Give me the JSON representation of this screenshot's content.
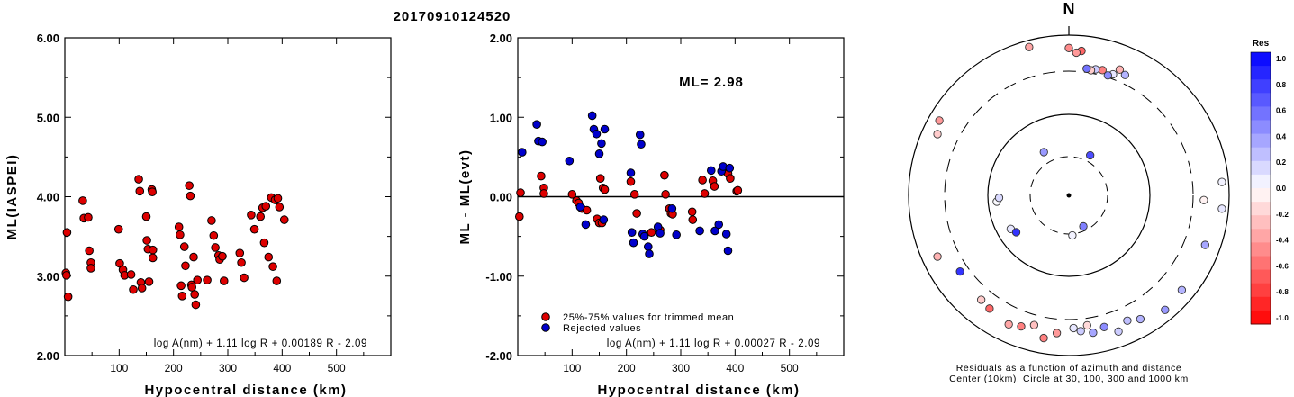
{
  "title": "20170910124520",
  "chart_data": [
    {
      "type": "scatter",
      "xlabel": "Hypocentral distance (km)",
      "ylabel": "ML(IASPEI)",
      "xlim": [
        0,
        600
      ],
      "ylim": [
        2.0,
        6.0
      ],
      "xticks": [
        "100",
        "200",
        "300",
        "400",
        "500"
      ],
      "yticks": [
        "2.00",
        "3.00",
        "4.00",
        "5.00",
        "6.00"
      ],
      "annotation": "log A(nm) + 1.11 log R + 0.00189 R - 2.09",
      "series": [
        {
          "color": "#dd0000",
          "points": [
            [
              2,
              3.04
            ],
            [
              3,
              3.01
            ],
            [
              4,
              3.55
            ],
            [
              6,
              2.74
            ],
            [
              33,
              3.95
            ],
            [
              35,
              3.73
            ],
            [
              43,
              3.74
            ],
            [
              45,
              3.32
            ],
            [
              48,
              3.17
            ],
            [
              48,
              3.1
            ],
            [
              99,
              3.59
            ],
            [
              101,
              3.16
            ],
            [
              107,
              3.08
            ],
            [
              110,
              3.01
            ],
            [
              122,
              3.02
            ],
            [
              126,
              2.83
            ],
            [
              136,
              4.22
            ],
            [
              138,
              4.07
            ],
            [
              140,
              2.92
            ],
            [
              142,
              2.85
            ],
            [
              150,
              3.75
            ],
            [
              151,
              3.45
            ],
            [
              153,
              3.34
            ],
            [
              155,
              2.93
            ],
            [
              160,
              4.09
            ],
            [
              161,
              4.06
            ],
            [
              162,
              3.33
            ],
            [
              162,
              3.23
            ],
            [
              210,
              3.62
            ],
            [
              212,
              3.52
            ],
            [
              214,
              2.88
            ],
            [
              216,
              2.75
            ],
            [
              220,
              3.37
            ],
            [
              222,
              3.13
            ],
            [
              229,
              4.14
            ],
            [
              231,
              4.01
            ],
            [
              233,
              2.89
            ],
            [
              234,
              2.86
            ],
            [
              237,
              3.24
            ],
            [
              239,
              2.77
            ],
            [
              241,
              2.64
            ],
            [
              244,
              2.95
            ],
            [
              262,
              2.95
            ],
            [
              270,
              3.7
            ],
            [
              274,
              3.51
            ],
            [
              277,
              3.36
            ],
            [
              283,
              3.26
            ],
            [
              285,
              3.21
            ],
            [
              290,
              3.25
            ],
            [
              293,
              2.94
            ],
            [
              322,
              3.29
            ],
            [
              325,
              3.17
            ],
            [
              330,
              2.98
            ],
            [
              343,
              3.77
            ],
            [
              349,
              3.59
            ],
            [
              360,
              3.75
            ],
            [
              364,
              3.86
            ],
            [
              367,
              3.42
            ],
            [
              370,
              3.88
            ],
            [
              375,
              3.24
            ],
            [
              380,
              3.99
            ],
            [
              383,
              3.12
            ],
            [
              387,
              3.96
            ],
            [
              390,
              2.94
            ],
            [
              392,
              3.98
            ],
            [
              395,
              3.87
            ],
            [
              404,
              3.71
            ]
          ]
        }
      ]
    },
    {
      "type": "scatter",
      "xlabel": "Hypocentral distance (km)",
      "ylabel": "ML - ML(evt)",
      "xlim": [
        0,
        600
      ],
      "ylim": [
        -2.0,
        2.0
      ],
      "xticks": [
        "100",
        "200",
        "300",
        "400",
        "500"
      ],
      "yticks": [
        "-2.00",
        "-1.00",
        "0.00",
        "1.00",
        "2.00"
      ],
      "ml_label": "ML= 2.98",
      "annotation": "log A(nm) + 1.11 log R + 0.00027 R - 2.09",
      "legend": [
        {
          "label": "25%-75% values for trimmed mean",
          "color": "#dd0000"
        },
        {
          "label": "Rejected values",
          "color": "#0000cc"
        }
      ],
      "series": [
        {
          "name": "25%-75% values for trimmed mean",
          "color": "#dd0000",
          "points": [
            [
              3,
              -0.25
            ],
            [
              5,
              0.05
            ],
            [
              43,
              0.26
            ],
            [
              48,
              0.11
            ],
            [
              48,
              0.04
            ],
            [
              100,
              0.03
            ],
            [
              108,
              -0.05
            ],
            [
              112,
              -0.08
            ],
            [
              118,
              -0.15
            ],
            [
              127,
              -0.17
            ],
            [
              146,
              -0.28
            ],
            [
              150,
              -0.33
            ],
            [
              152,
              0.23
            ],
            [
              155,
              -0.33
            ],
            [
              157,
              0.11
            ],
            [
              160,
              0.09
            ],
            [
              208,
              0.19
            ],
            [
              215,
              0.03
            ],
            [
              219,
              -0.21
            ],
            [
              246,
              -0.45
            ],
            [
              262,
              -0.42
            ],
            [
              270,
              0.27
            ],
            [
              272,
              0.03
            ],
            [
              279,
              -0.15
            ],
            [
              282,
              -0.21
            ],
            [
              285,
              -0.22
            ],
            [
              321,
              -0.19
            ],
            [
              322,
              -0.29
            ],
            [
              340,
              0.21
            ],
            [
              344,
              0.04
            ],
            [
              359,
              0.2
            ],
            [
              362,
              0.13
            ],
            [
              387,
              0.29
            ],
            [
              391,
              0.23
            ],
            [
              403,
              0.07
            ],
            [
              405,
              0.08
            ]
          ]
        },
        {
          "name": "Rejected values",
          "color": "#0000cc",
          "points": [
            [
              8,
              0.56
            ],
            [
              35,
              0.91
            ],
            [
              38,
              0.7
            ],
            [
              45,
              0.69
            ],
            [
              95,
              0.45
            ],
            [
              115,
              -0.13
            ],
            [
              125,
              -0.35
            ],
            [
              137,
              1.02
            ],
            [
              140,
              0.85
            ],
            [
              145,
              0.79
            ],
            [
              150,
              0.54
            ],
            [
              154,
              0.67
            ],
            [
              160,
              0.85
            ],
            [
              158,
              -0.29
            ],
            [
              208,
              0.3
            ],
            [
              210,
              -0.45
            ],
            [
              213,
              -0.58
            ],
            [
              225,
              0.78
            ],
            [
              227,
              0.66
            ],
            [
              230,
              -0.47
            ],
            [
              233,
              -0.5
            ],
            [
              240,
              -0.63
            ],
            [
              242,
              -0.72
            ],
            [
              258,
              -0.38
            ],
            [
              262,
              -0.46
            ],
            [
              284,
              -0.15
            ],
            [
              292,
              -0.48
            ],
            [
              335,
              -0.43
            ],
            [
              356,
              0.33
            ],
            [
              363,
              -0.43
            ],
            [
              370,
              -0.35
            ],
            [
              375,
              0.32
            ],
            [
              378,
              0.38
            ],
            [
              384,
              -0.47
            ],
            [
              387,
              -0.68
            ],
            [
              390,
              0.36
            ]
          ]
        }
      ]
    },
    {
      "type": "polar-scatter",
      "north_label": "N",
      "caption_line1": "Residuals as a function of azimuth and distance",
      "caption_line2": "Center (10km), Circle at 30, 100, 300 and 1000 km",
      "colorbar_title": "Res",
      "colorbar_ticks": [
        "1.0",
        "0.8",
        "0.6",
        "0.4",
        "0.2",
        "0.0",
        "-0.2",
        "-0.4",
        "-0.6",
        "-0.8",
        "-1.0"
      ],
      "points": [
        {
          "az": 155,
          "d": 30,
          "res": 0.5
        },
        {
          "az": 175,
          "d": 35,
          "res": 0.05
        },
        {
          "az": 240,
          "d": 70,
          "res": 0.1
        },
        {
          "az": 235,
          "d": 65,
          "res": 0.8
        },
        {
          "az": 330,
          "d": 45,
          "res": 0.4
        },
        {
          "az": 28,
          "d": 40,
          "res": 0.7
        },
        {
          "az": 25,
          "d": 400,
          "res": 0.3
        },
        {
          "az": 22,
          "d": 440,
          "res": -0.3
        },
        {
          "az": 20,
          "d": 350,
          "res": 0.1
        },
        {
          "az": 18,
          "d": 320,
          "res": 0.45
        },
        {
          "az": 15,
          "d": 360,
          "res": -0.5
        },
        {
          "az": 12,
          "d": 350,
          "res": 0.2
        },
        {
          "az": 10,
          "d": 330,
          "res": -0.2
        },
        {
          "az": 8,
          "d": 340,
          "res": 0.55
        },
        {
          "az": 5,
          "d": 600,
          "res": -0.6
        },
        {
          "az": 3,
          "d": 560,
          "res": -0.4
        },
        {
          "az": 0,
          "d": 650,
          "res": -0.45
        },
        {
          "az": 345,
          "d": 800,
          "res": -0.35
        },
        {
          "az": 300,
          "d": 700,
          "res": -0.4
        },
        {
          "az": 295,
          "d": 600,
          "res": -0.2
        },
        {
          "az": 92,
          "d": 430,
          "res": -0.05
        },
        {
          "az": 85,
          "d": 800,
          "res": 0.05
        },
        {
          "az": 95,
          "d": 800,
          "res": 0.1
        },
        {
          "az": 110,
          "d": 600,
          "res": 0.35
        },
        {
          "az": 130,
          "d": 650,
          "res": 0.3
        },
        {
          "az": 140,
          "d": 700,
          "res": 0.4
        },
        {
          "az": 150,
          "d": 560,
          "res": 0.3
        },
        {
          "az": 155,
          "d": 480,
          "res": 0.25
        },
        {
          "az": 160,
          "d": 600,
          "res": 0.2
        },
        {
          "az": 165,
          "d": 450,
          "res": 0.45
        },
        {
          "az": 170,
          "d": 500,
          "res": 0.35
        },
        {
          "az": 172,
          "d": 380,
          "res": -0.15
        },
        {
          "az": 178,
          "d": 400,
          "res": 0.1
        },
        {
          "az": 185,
          "d": 480,
          "res": -0.4
        },
        {
          "az": 190,
          "d": 600,
          "res": -0.5
        },
        {
          "az": 195,
          "d": 420,
          "res": -0.25
        },
        {
          "az": 200,
          "d": 500,
          "res": -0.5
        },
        {
          "az": 205,
          "d": 550,
          "res": -0.35
        },
        {
          "az": 215,
          "d": 480,
          "res": -0.6
        },
        {
          "az": 220,
          "d": 450,
          "res": -0.2
        },
        {
          "az": 265,
          "d": 80,
          "res": 0.02
        },
        {
          "az": 268,
          "d": 75,
          "res": 0.15
        },
        {
          "az": 235,
          "d": 400,
          "res": 0.8
        },
        {
          "az": 245,
          "d": 600,
          "res": -0.3
        },
        {
          "az": 175,
          "d": 450,
          "res": 0.2
        }
      ]
    }
  ]
}
